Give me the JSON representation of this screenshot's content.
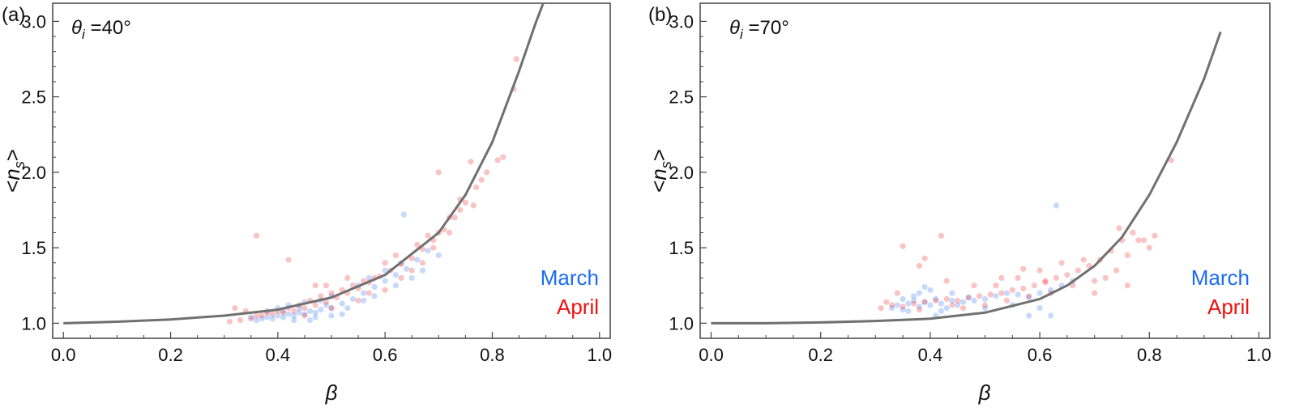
{
  "colors": {
    "march": "#1a6cf5",
    "april": "#ee1111",
    "curve": "#707070",
    "frame": "#444444"
  },
  "chart_data": [
    {
      "type": "scatter",
      "panel_label": "(a)",
      "annotation": {
        "symbol": "θ",
        "subscript": "i",
        "text": " =40°"
      },
      "xlabel": "β",
      "ylabel": {
        "open": "<",
        "main": "n",
        "sub": "s",
        "close": ">"
      },
      "xlim": [
        -0.02,
        1.02
      ],
      "ylim": [
        0.9,
        3.12
      ],
      "xticks": [
        "0.0",
        "0.2",
        "0.4",
        "0.6",
        "0.8",
        "1.0"
      ],
      "yticks": [
        "1.0",
        "1.5",
        "2.0",
        "2.5",
        "3.0"
      ],
      "grid": false,
      "legend_position": "bottom-right",
      "curve": {
        "type": "line",
        "description": "model",
        "points": [
          [
            0.0,
            1.0
          ],
          [
            0.1,
            1.01
          ],
          [
            0.2,
            1.025
          ],
          [
            0.3,
            1.05
          ],
          [
            0.4,
            1.09
          ],
          [
            0.5,
            1.17
          ],
          [
            0.6,
            1.32
          ],
          [
            0.7,
            1.6
          ],
          [
            0.75,
            1.85
          ],
          [
            0.8,
            2.2
          ],
          [
            0.85,
            2.67
          ],
          [
            0.88,
            2.98
          ],
          [
            0.895,
            3.12
          ]
        ]
      },
      "series": [
        {
          "name": "March",
          "points": [
            [
              0.36,
              1.02
            ],
            [
              0.37,
              1.03
            ],
            [
              0.38,
              1.04
            ],
            [
              0.39,
              1.03
            ],
            [
              0.4,
              1.05
            ],
            [
              0.41,
              1.04
            ],
            [
              0.42,
              1.06
            ],
            [
              0.43,
              1.05
            ],
            [
              0.44,
              1.07
            ],
            [
              0.45,
              1.06
            ],
            [
              0.46,
              1.08
            ],
            [
              0.47,
              1.07
            ],
            [
              0.48,
              1.09
            ],
            [
              0.5,
              1.1
            ],
            [
              0.52,
              1.13
            ],
            [
              0.54,
              1.16
            ],
            [
              0.56,
              1.2
            ],
            [
              0.58,
              1.24
            ],
            [
              0.6,
              1.28
            ],
            [
              0.62,
              1.32
            ],
            [
              0.64,
              1.36
            ],
            [
              0.66,
              1.42
            ],
            [
              0.68,
              1.48
            ],
            [
              0.4,
              1.1
            ],
            [
              0.42,
              1.12
            ],
            [
              0.45,
              1.14
            ],
            [
              0.48,
              1.15
            ],
            [
              0.5,
              1.18
            ],
            [
              0.55,
              1.25
            ],
            [
              0.57,
              1.3
            ],
            [
              0.6,
              1.35
            ],
            [
              0.63,
              1.4
            ],
            [
              0.65,
              1.3
            ],
            [
              0.67,
              1.35
            ],
            [
              0.7,
              1.45
            ],
            [
              0.43,
              1.02
            ],
            [
              0.47,
              1.04
            ],
            [
              0.52,
              1.06
            ],
            [
              0.58,
              1.18
            ],
            [
              0.62,
              1.25
            ],
            [
              0.635,
              1.72
            ],
            [
              0.44,
              1.1
            ],
            [
              0.46,
              1.02
            ],
            [
              0.5,
              1.05
            ],
            [
              0.38,
              1.08
            ],
            [
              0.35,
              1.04
            ],
            [
              0.41,
              1.08
            ],
            [
              0.49,
              1.12
            ],
            [
              0.53,
              1.1
            ],
            [
              0.56,
              1.15
            ]
          ]
        },
        {
          "name": "April",
          "points": [
            [
              0.31,
              1.01
            ],
            [
              0.33,
              1.02
            ],
            [
              0.35,
              1.03
            ],
            [
              0.37,
              1.05
            ],
            [
              0.39,
              1.06
            ],
            [
              0.41,
              1.07
            ],
            [
              0.43,
              1.08
            ],
            [
              0.45,
              1.1
            ],
            [
              0.47,
              1.12
            ],
            [
              0.49,
              1.14
            ],
            [
              0.51,
              1.17
            ],
            [
              0.53,
              1.2
            ],
            [
              0.55,
              1.23
            ],
            [
              0.57,
              1.27
            ],
            [
              0.59,
              1.31
            ],
            [
              0.61,
              1.35
            ],
            [
              0.63,
              1.39
            ],
            [
              0.65,
              1.43
            ],
            [
              0.67,
              1.49
            ],
            [
              0.69,
              1.55
            ],
            [
              0.71,
              1.62
            ],
            [
              0.73,
              1.7
            ],
            [
              0.75,
              1.8
            ],
            [
              0.77,
              1.9
            ],
            [
              0.79,
              2.0
            ],
            [
              0.81,
              2.08
            ],
            [
              0.82,
              2.1
            ],
            [
              0.84,
              2.55
            ],
            [
              0.845,
              2.75
            ],
            [
              0.76,
              2.07
            ],
            [
              0.78,
              1.95
            ],
            [
              0.74,
              1.75
            ],
            [
              0.72,
              1.7
            ],
            [
              0.7,
              1.6
            ],
            [
              0.68,
              1.58
            ],
            [
              0.66,
              1.52
            ],
            [
              0.62,
              1.45
            ],
            [
              0.6,
              1.4
            ],
            [
              0.58,
              1.3
            ],
            [
              0.56,
              1.28
            ],
            [
              0.54,
              1.25
            ],
            [
              0.52,
              1.22
            ],
            [
              0.5,
              1.2
            ],
            [
              0.48,
              1.18
            ],
            [
              0.46,
              1.15
            ],
            [
              0.44,
              1.12
            ],
            [
              0.42,
              1.1
            ],
            [
              0.4,
              1.08
            ],
            [
              0.38,
              1.07
            ],
            [
              0.36,
              1.05
            ],
            [
              0.36,
              1.58
            ],
            [
              0.42,
              1.42
            ],
            [
              0.47,
              1.25
            ],
            [
              0.55,
              1.15
            ],
            [
              0.6,
              1.22
            ],
            [
              0.65,
              1.35
            ],
            [
              0.69,
              1.5
            ],
            [
              0.72,
              1.6
            ],
            [
              0.5,
              1.1
            ],
            [
              0.45,
              1.05
            ],
            [
              0.34,
              1.08
            ],
            [
              0.32,
              1.1
            ],
            [
              0.57,
              1.2
            ],
            [
              0.63,
              1.3
            ],
            [
              0.67,
              1.4
            ],
            [
              0.53,
              1.3
            ],
            [
              0.49,
              1.25
            ],
            [
              0.74,
              1.82
            ],
            [
              0.765,
              1.78
            ],
            [
              0.7,
              2.0
            ]
          ]
        }
      ]
    },
    {
      "type": "scatter",
      "panel_label": "(b)",
      "annotation": {
        "symbol": "θ",
        "subscript": "i",
        "text": " =70°"
      },
      "xlabel": "β",
      "ylabel": {
        "open": "<",
        "main": "n",
        "sub": "s",
        "close": ">"
      },
      "xlim": [
        -0.02,
        1.02
      ],
      "ylim": [
        0.9,
        3.12
      ],
      "xticks": [
        "0.0",
        "0.2",
        "0.4",
        "0.6",
        "0.8",
        "1.0"
      ],
      "yticks": [
        "1.0",
        "1.5",
        "2.0",
        "2.5",
        "3.0"
      ],
      "grid": false,
      "legend_position": "bottom-right",
      "curve": {
        "type": "line",
        "description": "model",
        "points": [
          [
            0.0,
            1.0
          ],
          [
            0.1,
            1.0
          ],
          [
            0.2,
            1.005
          ],
          [
            0.3,
            1.015
          ],
          [
            0.4,
            1.03
          ],
          [
            0.5,
            1.07
          ],
          [
            0.6,
            1.16
          ],
          [
            0.65,
            1.25
          ],
          [
            0.7,
            1.38
          ],
          [
            0.75,
            1.57
          ],
          [
            0.8,
            1.85
          ],
          [
            0.85,
            2.2
          ],
          [
            0.9,
            2.62
          ],
          [
            0.93,
            2.93
          ]
        ]
      },
      "series": [
        {
          "name": "March",
          "points": [
            [
              0.33,
              1.1
            ],
            [
              0.34,
              1.12
            ],
            [
              0.35,
              1.09
            ],
            [
              0.36,
              1.13
            ],
            [
              0.37,
              1.15
            ],
            [
              0.38,
              1.11
            ],
            [
              0.39,
              1.14
            ],
            [
              0.4,
              1.12
            ],
            [
              0.41,
              1.16
            ],
            [
              0.42,
              1.13
            ],
            [
              0.43,
              1.1
            ],
            [
              0.44,
              1.15
            ],
            [
              0.45,
              1.12
            ],
            [
              0.46,
              1.14
            ],
            [
              0.47,
              1.17
            ],
            [
              0.48,
              1.15
            ],
            [
              0.5,
              1.16
            ],
            [
              0.52,
              1.18
            ],
            [
              0.54,
              1.2
            ],
            [
              0.56,
              1.19
            ],
            [
              0.58,
              1.17
            ],
            [
              0.6,
              1.2
            ],
            [
              0.62,
              1.22
            ],
            [
              0.64,
              1.25
            ],
            [
              0.66,
              1.28
            ],
            [
              0.38,
              1.2
            ],
            [
              0.4,
              1.22
            ],
            [
              0.42,
              1.08
            ],
            [
              0.36,
              1.08
            ],
            [
              0.39,
              1.24
            ],
            [
              0.41,
              1.05
            ],
            [
              0.44,
              1.2
            ],
            [
              0.5,
              1.1
            ],
            [
              0.55,
              1.12
            ],
            [
              0.6,
              1.1
            ],
            [
              0.63,
              1.78
            ],
            [
              0.62,
              1.05
            ],
            [
              0.58,
              1.05
            ],
            [
              0.35,
              1.16
            ],
            [
              0.37,
              1.18
            ]
          ]
        },
        {
          "name": "April",
          "points": [
            [
              0.31,
              1.1
            ],
            [
              0.33,
              1.12
            ],
            [
              0.35,
              1.11
            ],
            [
              0.37,
              1.13
            ],
            [
              0.39,
              1.14
            ],
            [
              0.41,
              1.15
            ],
            [
              0.43,
              1.16
            ],
            [
              0.45,
              1.15
            ],
            [
              0.47,
              1.17
            ],
            [
              0.49,
              1.18
            ],
            [
              0.51,
              1.19
            ],
            [
              0.53,
              1.2
            ],
            [
              0.55,
              1.22
            ],
            [
              0.57,
              1.23
            ],
            [
              0.59,
              1.25
            ],
            [
              0.61,
              1.27
            ],
            [
              0.63,
              1.3
            ],
            [
              0.65,
              1.32
            ],
            [
              0.67,
              1.35
            ],
            [
              0.69,
              1.38
            ],
            [
              0.71,
              1.42
            ],
            [
              0.73,
              1.48
            ],
            [
              0.75,
              1.55
            ],
            [
              0.77,
              1.6
            ],
            [
              0.79,
              1.55
            ],
            [
              0.81,
              1.58
            ],
            [
              0.84,
              2.08
            ],
            [
              0.35,
              1.51
            ],
            [
              0.42,
              1.58
            ],
            [
              0.39,
              1.43
            ],
            [
              0.43,
              1.28
            ],
            [
              0.48,
              1.25
            ],
            [
              0.52,
              1.25
            ],
            [
              0.56,
              1.3
            ],
            [
              0.6,
              1.35
            ],
            [
              0.64,
              1.4
            ],
            [
              0.68,
              1.42
            ],
            [
              0.72,
              1.3
            ],
            [
              0.76,
              1.45
            ],
            [
              0.8,
              1.5
            ],
            [
              0.5,
              1.12
            ],
            [
              0.46,
              1.1
            ],
            [
              0.54,
              1.15
            ],
            [
              0.58,
              1.18
            ],
            [
              0.62,
              1.2
            ],
            [
              0.66,
              1.25
            ],
            [
              0.7,
              1.28
            ],
            [
              0.745,
              1.63
            ],
            [
              0.78,
              1.55
            ],
            [
              0.32,
              1.14
            ],
            [
              0.38,
              1.09
            ],
            [
              0.44,
              1.12
            ],
            [
              0.53,
              1.3
            ],
            [
              0.57,
              1.36
            ],
            [
              0.61,
              1.28
            ],
            [
              0.34,
              1.2
            ],
            [
              0.38,
              1.38
            ],
            [
              0.7,
              1.2
            ],
            [
              0.74,
              1.35
            ],
            [
              0.76,
              1.25
            ]
          ]
        }
      ]
    }
  ]
}
